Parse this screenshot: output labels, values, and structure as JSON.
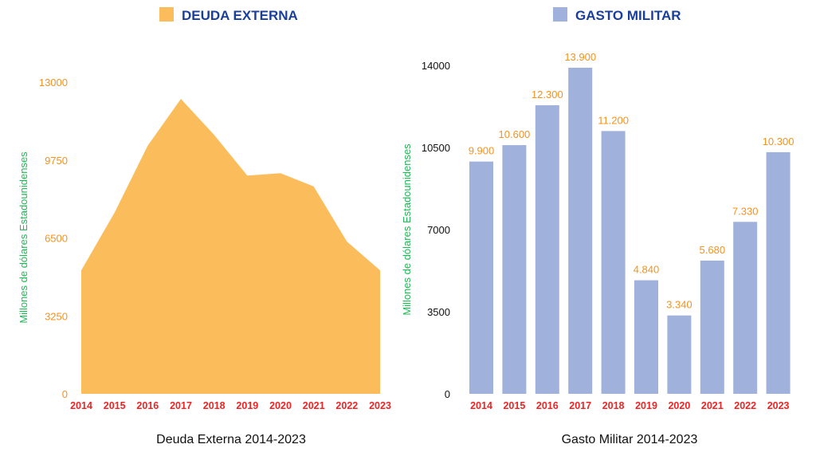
{
  "colors": {
    "area_fill": "#fbbd5b",
    "bar_fill": "#a0b1dc",
    "legend_text": "#1a3f9b",
    "axis_label": "#1fb955",
    "year_label": "#ee2424",
    "data_label": "#f5921e"
  },
  "chart_data": [
    {
      "type": "area",
      "legend": "DEUDA EXTERNA",
      "caption": "Deuda Externa 2014-2023",
      "ylabel": "Millones de dólares Estadounidenses",
      "categories": [
        "2014",
        "2015",
        "2016",
        "2017",
        "2018",
        "2019",
        "2020",
        "2021",
        "2022",
        "2023"
      ],
      "values": [
        5150,
        7550,
        10350,
        12300,
        10800,
        9100,
        9200,
        8650,
        6350,
        5150
      ],
      "yticks": [
        0,
        3250,
        6500,
        9750,
        13000
      ],
      "ytick_labels": [
        "0",
        "3250",
        "6500",
        "9750",
        "13000"
      ],
      "ylim": [
        0,
        13000
      ],
      "grid": false
    },
    {
      "type": "bar",
      "legend": "GASTO MILITAR",
      "caption": "Gasto Militar 2014-2023",
      "ylabel": "Millones de dólares Estadounidenses",
      "categories": [
        "2014",
        "2015",
        "2016",
        "2017",
        "2018",
        "2019",
        "2020",
        "2021",
        "2022",
        "2023"
      ],
      "values": [
        9900,
        10600,
        12300,
        13900,
        11200,
        4840,
        3340,
        5680,
        7330,
        10300
      ],
      "data_labels": [
        "9.900",
        "10.600",
        "12.300",
        "13.900",
        "11.200",
        "4.840",
        "3.340",
        "5.680",
        "7.330",
        "10.300"
      ],
      "yticks": [
        0,
        3500,
        7000,
        10500,
        14000
      ],
      "ytick_labels": [
        "0",
        "3500",
        "7000",
        "10500",
        "14000"
      ],
      "ylim": [
        0,
        14000
      ],
      "grid": false
    }
  ]
}
